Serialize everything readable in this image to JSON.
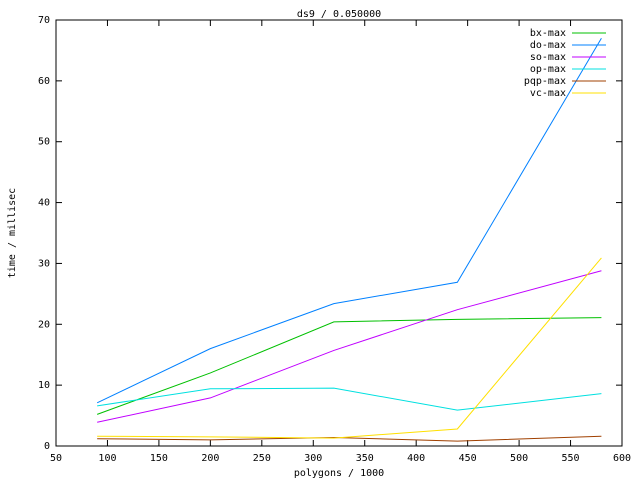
{
  "chart_data": {
    "type": "line",
    "title": "ds9 / 0.050000",
    "x_label": "polygons / 1000",
    "y_label": "time / millisec",
    "x": [
      90,
      200,
      320,
      440,
      580
    ],
    "series": [
      {
        "name": "bx-max",
        "color": "#00c000",
        "values": [
          5.2,
          12,
          20.4,
          20.8,
          21.1
        ]
      },
      {
        "name": "do-max",
        "color": "#0080ff",
        "values": [
          7.1,
          16,
          23.4,
          26.9,
          67
        ]
      },
      {
        "name": "so-max",
        "color": "#c000ff",
        "values": [
          3.9,
          7.9,
          15.7,
          22.4,
          28.8
        ]
      },
      {
        "name": "op-max",
        "color": "#00e0e0",
        "values": [
          6.6,
          9.4,
          9.5,
          5.9,
          8.6
        ]
      },
      {
        "name": "pqp-max",
        "color": "#a04000",
        "values": [
          1.2,
          1.0,
          1.4,
          0.8,
          1.6
        ]
      },
      {
        "name": "vc-max",
        "color": "#ffe000",
        "values": [
          1.6,
          1.5,
          1.3,
          2.8,
          30.9
        ]
      }
    ],
    "xlim": [
      50,
      600
    ],
    "xticks": [
      50,
      100,
      150,
      200,
      250,
      300,
      350,
      400,
      450,
      500,
      550,
      600
    ],
    "ylim": [
      0,
      70
    ],
    "yticks": [
      0,
      10,
      20,
      30,
      40,
      50,
      60,
      70
    ],
    "grid": false,
    "legend": "top-right"
  }
}
